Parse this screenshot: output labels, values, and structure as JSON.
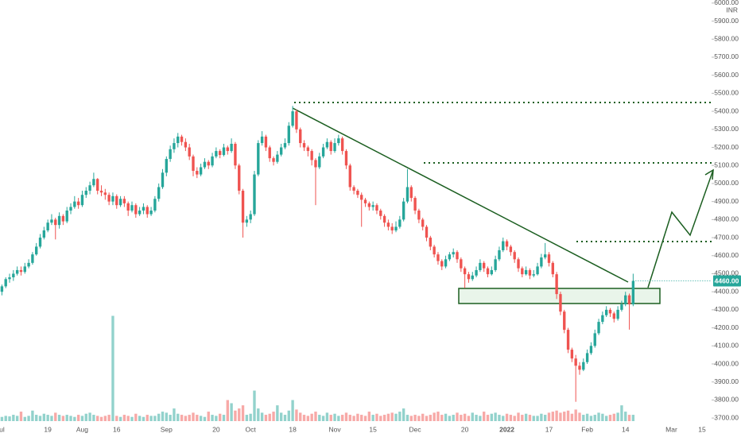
{
  "chart_data": {
    "type": "candlestick",
    "currency": "INR",
    "up_color": "#26a69a",
    "down_color": "#ef5350",
    "ylim": [
      3683,
      6017
    ],
    "yticks": [
      {
        "value": 3700,
        "label": "3700.00"
      },
      {
        "value": 3800,
        "label": "3800.00"
      },
      {
        "value": 3900,
        "label": "3900.00"
      },
      {
        "value": 4000,
        "label": "4000.00"
      },
      {
        "value": 4100,
        "label": "4100.00"
      },
      {
        "value": 4200,
        "label": "4200.00"
      },
      {
        "value": 4300,
        "label": "4300.00"
      },
      {
        "value": 4400,
        "label": "4400.00"
      },
      {
        "value": 4500,
        "label": "4500.00"
      },
      {
        "value": 4600,
        "label": "4600.00"
      },
      {
        "value": 4700,
        "label": "4700.00"
      },
      {
        "value": 4800,
        "label": "4800.00"
      },
      {
        "value": 4900,
        "label": "4900.00"
      },
      {
        "value": 5000,
        "label": "5000.00"
      },
      {
        "value": 5100,
        "label": "5100.00"
      },
      {
        "value": 5200,
        "label": "5200.00"
      },
      {
        "value": 5300,
        "label": "5300.00"
      },
      {
        "value": 5400,
        "label": "5400.00"
      },
      {
        "value": 5500,
        "label": "5500.00"
      },
      {
        "value": 5600,
        "label": "5600.00"
      },
      {
        "value": 5700,
        "label": "5700.00"
      },
      {
        "value": 5800,
        "label": "5800.00"
      },
      {
        "value": 5900,
        "label": "5900.00"
      },
      {
        "value": 6000,
        "label": "6000.00"
      }
    ],
    "xlim": [
      -0.5,
      185.5
    ],
    "xticks": [
      {
        "value": 0,
        "label": "ul"
      },
      {
        "value": 12,
        "label": "19"
      },
      {
        "value": 21,
        "label": "Aug"
      },
      {
        "value": 30,
        "label": "16"
      },
      {
        "value": 43,
        "label": "Sep"
      },
      {
        "value": 56,
        "label": "20"
      },
      {
        "value": 65,
        "label": "Oct"
      },
      {
        "value": 76,
        "label": "18"
      },
      {
        "value": 87,
        "label": "Nov"
      },
      {
        "value": 97,
        "label": "15"
      },
      {
        "value": 108,
        "label": "Dec"
      },
      {
        "value": 121,
        "label": "20"
      },
      {
        "value": 132,
        "label": "2022"
      },
      {
        "value": 143,
        "label": "17"
      },
      {
        "value": 153,
        "label": "Feb"
      },
      {
        "value": 163,
        "label": "14"
      },
      {
        "value": 175,
        "label": "Mar"
      },
      {
        "value": 183,
        "label": "15"
      }
    ],
    "last_price": {
      "value": 4460,
      "label": "4460.00"
    },
    "volume_ylim": [
      0,
      4000
    ],
    "values": [
      [
        4400,
        4440,
        4380,
        4430
      ],
      [
        4430,
        4480,
        4420,
        4470
      ],
      [
        4470,
        4500,
        4450,
        4480
      ],
      [
        4480,
        4520,
        4460,
        4500
      ],
      [
        4500,
        4540,
        4490,
        4520
      ],
      [
        4520,
        4540,
        4490,
        4510
      ],
      [
        4510,
        4560,
        4500,
        4540
      ],
      [
        4540,
        4580,
        4530,
        4560
      ],
      [
        4560,
        4620,
        4550,
        4607
      ],
      [
        4607,
        4670,
        4600,
        4650
      ],
      [
        4650,
        4720,
        4640,
        4700
      ],
      [
        4700,
        4760,
        4690,
        4740
      ],
      [
        4740,
        4800,
        4730,
        4783
      ],
      [
        4783,
        4830,
        4770,
        4800
      ],
      [
        4800,
        4810,
        4690,
        4770
      ],
      [
        4770,
        4840,
        4750,
        4820
      ],
      [
        4820,
        4830,
        4770,
        4790
      ],
      [
        4790,
        4870,
        4780,
        4850
      ],
      [
        4850,
        4890,
        4830,
        4870
      ],
      [
        4870,
        4930,
        4860,
        4900
      ],
      [
        4900,
        4920,
        4860,
        4880
      ],
      [
        4880,
        4960,
        4870,
        4937
      ],
      [
        4937,
        4980,
        4920,
        4960
      ],
      [
        4960,
        5010,
        4940,
        4990
      ],
      [
        4990,
        5060,
        4980,
        5025
      ],
      [
        5025,
        5030,
        4940,
        4960
      ],
      [
        4960,
        4990,
        4930,
        4950
      ],
      [
        4950,
        4970,
        4910,
        4937
      ],
      [
        4937,
        4950,
        4880,
        4900
      ],
      [
        4900,
        4950,
        4880,
        4930
      ],
      [
        4930,
        4940,
        4860,
        4880
      ],
      [
        4880,
        4930,
        4870,
        4915
      ],
      [
        4915,
        4930,
        4870,
        4890
      ],
      [
        4890,
        4900,
        4820,
        4850
      ],
      [
        4850,
        4900,
        4840,
        4880
      ],
      [
        4880,
        4890,
        4810,
        4830
      ],
      [
        4830,
        4870,
        4820,
        4850
      ],
      [
        4850,
        4890,
        4830,
        4870
      ],
      [
        4870,
        4880,
        4810,
        4830
      ],
      [
        4830,
        4870,
        4820,
        4850
      ],
      [
        4850,
        4930,
        4840,
        4915
      ],
      [
        4915,
        5000,
        4900,
        4980
      ],
      [
        4980,
        5080,
        4970,
        5060
      ],
      [
        5060,
        5150,
        5040,
        5136
      ],
      [
        5136,
        5210,
        5120,
        5190
      ],
      [
        5190,
        5250,
        5170,
        5224
      ],
      [
        5224,
        5280,
        5200,
        5260
      ],
      [
        5260,
        5270,
        5210,
        5230
      ],
      [
        5230,
        5250,
        5180,
        5200
      ],
      [
        5200,
        5220,
        5130,
        5150
      ],
      [
        5150,
        5160,
        5040,
        5070
      ],
      [
        5070,
        5090,
        5030,
        5050
      ],
      [
        5050,
        5110,
        5040,
        5090
      ],
      [
        5090,
        5140,
        5080,
        5120
      ],
      [
        5120,
        5130,
        5080,
        5100
      ],
      [
        5100,
        5170,
        5090,
        5150
      ],
      [
        5150,
        5200,
        5140,
        5180
      ],
      [
        5180,
        5190,
        5140,
        5158
      ],
      [
        5158,
        5220,
        5150,
        5200
      ],
      [
        5200,
        5210,
        5160,
        5180
      ],
      [
        5180,
        5250,
        5170,
        5220
      ],
      [
        5220,
        5230,
        5080,
        5100
      ],
      [
        5100,
        5110,
        4940,
        4960
      ],
      [
        4960,
        4970,
        4700,
        4783
      ],
      [
        4783,
        4820,
        4760,
        4800
      ],
      [
        4800,
        4850,
        4780,
        4830
      ],
      [
        4830,
        5070,
        4820,
        5050
      ],
      [
        5050,
        5240,
        5040,
        5224
      ],
      [
        5224,
        5290,
        5210,
        5260
      ],
      [
        5260,
        5270,
        5180,
        5200
      ],
      [
        5200,
        5210,
        5120,
        5140
      ],
      [
        5140,
        5150,
        5100,
        5120
      ],
      [
        5120,
        5180,
        5110,
        5160
      ],
      [
        5160,
        5220,
        5150,
        5200
      ],
      [
        5200,
        5250,
        5190,
        5224
      ],
      [
        5224,
        5340,
        5210,
        5320
      ],
      [
        5320,
        5430,
        5310,
        5400
      ],
      [
        5400,
        5410,
        5280,
        5300
      ],
      [
        5300,
        5310,
        5200,
        5224
      ],
      [
        5224,
        5240,
        5180,
        5200
      ],
      [
        5200,
        5210,
        5150,
        5180
      ],
      [
        5180,
        5190,
        5100,
        5130
      ],
      [
        5130,
        5140,
        4880,
        5090
      ],
      [
        5090,
        5170,
        5080,
        5150
      ],
      [
        5150,
        5220,
        5140,
        5200
      ],
      [
        5200,
        5250,
        5190,
        5230
      ],
      [
        5230,
        5240,
        5160,
        5180
      ],
      [
        5180,
        5250,
        5170,
        5224
      ],
      [
        5224,
        5270,
        5210,
        5250
      ],
      [
        5250,
        5260,
        5160,
        5180
      ],
      [
        5180,
        5190,
        5080,
        5100
      ],
      [
        5100,
        5110,
        4960,
        4980
      ],
      [
        4980,
        4990,
        4940,
        4960
      ],
      [
        4960,
        4970,
        4920,
        4937
      ],
      [
        4937,
        4950,
        4760,
        4910
      ],
      [
        4910,
        4920,
        4870,
        4890
      ],
      [
        4890,
        4900,
        4850,
        4870
      ],
      [
        4870,
        4900,
        4850,
        4880
      ],
      [
        4880,
        4890,
        4830,
        4850
      ],
      [
        4850,
        4860,
        4800,
        4820
      ],
      [
        4820,
        4830,
        4760,
        4783
      ],
      [
        4783,
        4800,
        4740,
        4760
      ],
      [
        4760,
        4780,
        4720,
        4740
      ],
      [
        4740,
        4790,
        4730,
        4760
      ],
      [
        4760,
        4820,
        4750,
        4800
      ],
      [
        4800,
        4920,
        4790,
        4900
      ],
      [
        4900,
        5080,
        4890,
        4980
      ],
      [
        4980,
        4990,
        4900,
        4920
      ],
      [
        4920,
        4930,
        4830,
        4850
      ],
      [
        4850,
        4860,
        4780,
        4800
      ],
      [
        4800,
        4810,
        4740,
        4760
      ],
      [
        4760,
        4770,
        4680,
        4700
      ],
      [
        4700,
        4710,
        4630,
        4650
      ],
      [
        4650,
        4660,
        4590,
        4607
      ],
      [
        4607,
        4620,
        4550,
        4570
      ],
      [
        4570,
        4580,
        4520,
        4540
      ],
      [
        4540,
        4600,
        4530,
        4580
      ],
      [
        4580,
        4620,
        4570,
        4607
      ],
      [
        4607,
        4640,
        4590,
        4620
      ],
      [
        4620,
        4630,
        4560,
        4580
      ],
      [
        4580,
        4590,
        4510,
        4530
      ],
      [
        4530,
        4540,
        4420,
        4497
      ],
      [
        4497,
        4510,
        4450,
        4470
      ],
      [
        4470,
        4510,
        4460,
        4490
      ],
      [
        4490,
        4540,
        4480,
        4520
      ],
      [
        4520,
        4580,
        4510,
        4560
      ],
      [
        4560,
        4570,
        4510,
        4530
      ],
      [
        4530,
        4540,
        4480,
        4497
      ],
      [
        4497,
        4540,
        4490,
        4520
      ],
      [
        4520,
        4600,
        4510,
        4580
      ],
      [
        4580,
        4650,
        4570,
        4630
      ],
      [
        4630,
        4700,
        4620,
        4680
      ],
      [
        4680,
        4690,
        4630,
        4650
      ],
      [
        4650,
        4660,
        4600,
        4620
      ],
      [
        4620,
        4630,
        4560,
        4580
      ],
      [
        4580,
        4590,
        4510,
        4530
      ],
      [
        4530,
        4540,
        4480,
        4497
      ],
      [
        4497,
        4540,
        4490,
        4520
      ],
      [
        4520,
        4530,
        4470,
        4490
      ],
      [
        4490,
        4520,
        4480,
        4497
      ],
      [
        4497,
        4560,
        4490,
        4540
      ],
      [
        4540,
        4610,
        4530,
        4590
      ],
      [
        4590,
        4670,
        4580,
        4607
      ],
      [
        4607,
        4620,
        4540,
        4560
      ],
      [
        4560,
        4570,
        4480,
        4497
      ],
      [
        4497,
        4510,
        4360,
        4387
      ],
      [
        4387,
        4400,
        4270,
        4290
      ],
      [
        4290,
        4300,
        4170,
        4189
      ],
      [
        4189,
        4200,
        4060,
        4079
      ],
      [
        4079,
        4090,
        4010,
        4030
      ],
      [
        4030,
        4050,
        3790,
        3990
      ],
      [
        3990,
        4010,
        3940,
        3968
      ],
      [
        3968,
        4030,
        3960,
        4010
      ],
      [
        4010,
        4080,
        4000,
        4060
      ],
      [
        4060,
        4120,
        4050,
        4100
      ],
      [
        4100,
        4190,
        4090,
        4170
      ],
      [
        4170,
        4250,
        4160,
        4233
      ],
      [
        4233,
        4290,
        4220,
        4270
      ],
      [
        4270,
        4320,
        4260,
        4300
      ],
      [
        4300,
        4310,
        4260,
        4280
      ],
      [
        4280,
        4290,
        4230,
        4250
      ],
      [
        4250,
        4320,
        4240,
        4300
      ],
      [
        4300,
        4350,
        4290,
        4330
      ],
      [
        4330,
        4400,
        4320,
        4380
      ],
      [
        4380,
        4390,
        4190,
        4330
      ],
      [
        4330,
        4500,
        4320,
        4460
      ]
    ],
    "volume": [
      40,
      50,
      45,
      60,
      50,
      90,
      40,
      50,
      100,
      60,
      50,
      70,
      60,
      50,
      80,
      60,
      50,
      60,
      50,
      40,
      60,
      50,
      70,
      80,
      60,
      50,
      40,
      50,
      60,
      1000,
      50,
      40,
      60,
      50,
      40,
      70,
      50,
      40,
      60,
      50,
      50,
      70,
      90,
      80,
      60,
      120,
      70,
      60,
      50,
      60,
      80,
      60,
      50,
      40,
      90,
      60,
      50,
      70,
      60,
      200,
      170,
      100,
      120,
      150,
      60,
      70,
      290,
      120,
      80,
      60,
      70,
      90,
      150,
      80,
      60,
      100,
      200,
      110,
      80,
      60,
      50,
      70,
      90,
      60,
      50,
      80,
      60,
      70,
      50,
      60,
      80,
      60,
      50,
      70,
      60,
      50,
      90,
      60,
      70,
      50,
      60,
      70,
      80,
      70,
      90,
      120,
      60,
      50,
      60,
      50,
      70,
      50,
      60,
      80,
      90,
      60,
      70,
      50,
      60,
      80,
      60,
      70,
      50,
      80,
      60,
      50,
      90,
      60,
      70,
      80,
      60,
      50,
      70,
      60,
      50,
      80,
      60,
      70,
      60,
      50,
      50,
      70,
      60,
      80,
      90,
      100,
      80,
      90,
      100,
      70,
      110,
      80,
      60,
      70,
      50,
      60,
      80,
      70,
      50,
      60,
      70,
      80,
      150,
      90,
      60,
      60
    ]
  }
}
